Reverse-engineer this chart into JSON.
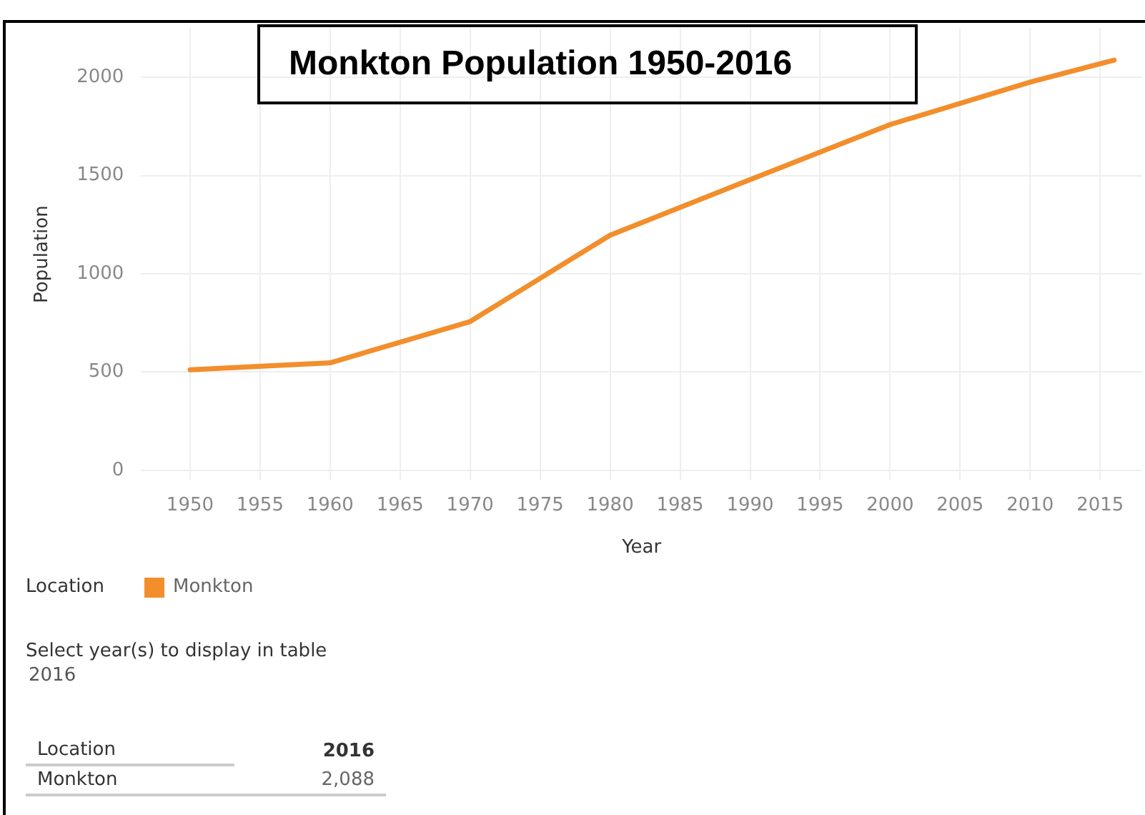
{
  "chart_data": {
    "type": "line",
    "title": "Monkton Population 1950-2016",
    "xlabel": "Year",
    "ylabel": "Population",
    "legend_title": "Location",
    "x": [
      1950,
      1960,
      1970,
      1980,
      1990,
      2000,
      2010,
      2016
    ],
    "series": [
      {
        "name": "Monkton",
        "color": "#f28e2b",
        "values": [
          512,
          547,
          757,
          1197,
          1480,
          1760,
          1976,
          2088
        ]
      }
    ],
    "xlim": [
      1946.5,
      2018
    ],
    "xticks": [
      1950,
      1955,
      1960,
      1965,
      1970,
      1975,
      1980,
      1985,
      1990,
      1995,
      2000,
      2005,
      2010,
      2015
    ],
    "ylim": [
      -50,
      2250
    ],
    "yticks": [
      0,
      500,
      1000,
      1500,
      2000
    ],
    "grid": true,
    "legend": "bottom left",
    "marker": "none",
    "annotations": [
      "Select year(s) to display in table",
      "2016",
      "Location",
      "2016",
      "Monkton",
      "2,088"
    ]
  }
}
